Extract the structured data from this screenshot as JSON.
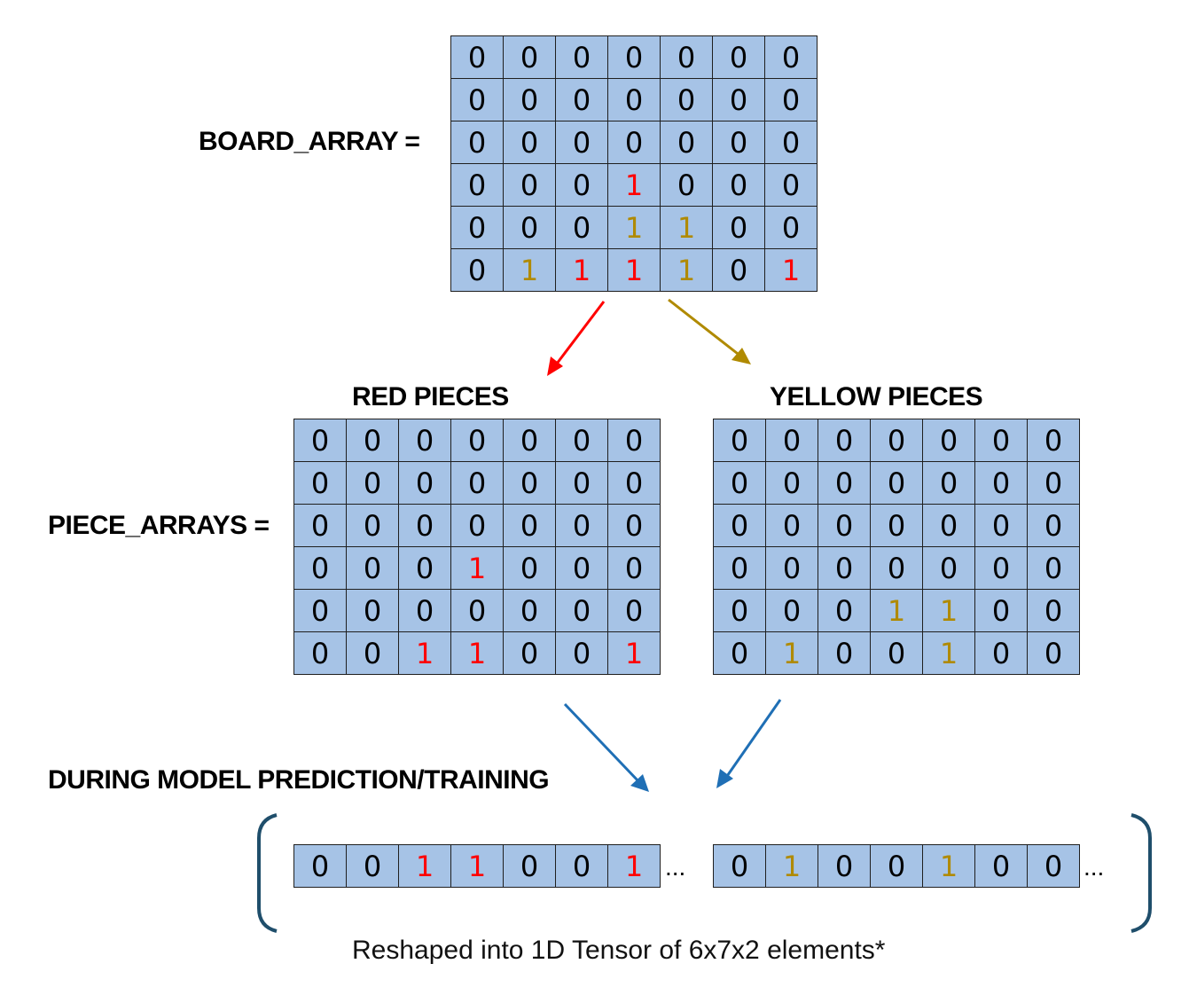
{
  "labels": {
    "board_array": "BOARD_ARRAY =",
    "piece_arrays": "PIECE_ARRAYS =",
    "red_pieces": "RED PIECES",
    "yellow_pieces": "YELLOW PIECES",
    "during_model": "DURING MODEL PREDICTION/TRAINING",
    "caption": "Reshaped into 1D Tensor of 6x7x2 elements*",
    "ellipsis": "..."
  },
  "colors": {
    "cell_fill": "#a6c3e6",
    "red": "#ff0000",
    "yellow": "#b08a00",
    "blue_arrow": "#1f6fb5",
    "bracket": "#1f4e6b"
  },
  "board_array": [
    [
      0,
      0,
      0,
      0,
      0,
      0,
      0
    ],
    [
      0,
      0,
      0,
      0,
      0,
      0,
      0
    ],
    [
      0,
      0,
      0,
      0,
      0,
      0,
      0
    ],
    [
      0,
      0,
      0,
      1,
      0,
      0,
      0
    ],
    [
      0,
      0,
      0,
      1,
      1,
      0,
      0
    ],
    [
      0,
      1,
      1,
      1,
      1,
      0,
      1
    ]
  ],
  "board_colors": [
    [
      "",
      "",
      "",
      "",
      "",
      "",
      ""
    ],
    [
      "",
      "",
      "",
      "",
      "",
      "",
      ""
    ],
    [
      "",
      "",
      "",
      "",
      "",
      "",
      ""
    ],
    [
      "",
      "",
      "",
      "red",
      "",
      "",
      ""
    ],
    [
      "",
      "",
      "",
      "yellow",
      "yellow",
      "",
      ""
    ],
    [
      "",
      "yellow",
      "red",
      "red",
      "yellow",
      "",
      "red"
    ]
  ],
  "red_array": [
    [
      0,
      0,
      0,
      0,
      0,
      0,
      0
    ],
    [
      0,
      0,
      0,
      0,
      0,
      0,
      0
    ],
    [
      0,
      0,
      0,
      0,
      0,
      0,
      0
    ],
    [
      0,
      0,
      0,
      1,
      0,
      0,
      0
    ],
    [
      0,
      0,
      0,
      0,
      0,
      0,
      0
    ],
    [
      0,
      0,
      1,
      1,
      0,
      0,
      1
    ]
  ],
  "yellow_array": [
    [
      0,
      0,
      0,
      0,
      0,
      0,
      0
    ],
    [
      0,
      0,
      0,
      0,
      0,
      0,
      0
    ],
    [
      0,
      0,
      0,
      0,
      0,
      0,
      0
    ],
    [
      0,
      0,
      0,
      0,
      0,
      0,
      0
    ],
    [
      0,
      0,
      0,
      1,
      1,
      0,
      0
    ],
    [
      0,
      1,
      0,
      0,
      1,
      0,
      0
    ]
  ],
  "flat_red": [
    0,
    0,
    1,
    1,
    0,
    0,
    1
  ],
  "flat_yellow": [
    0,
    1,
    0,
    0,
    1,
    0,
    0
  ]
}
